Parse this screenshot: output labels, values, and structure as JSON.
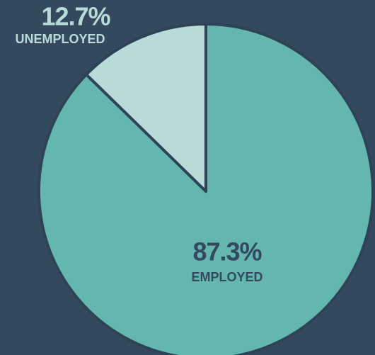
{
  "chart_data": {
    "type": "pie",
    "categories": [
      "EMPLOYED",
      "UNEMPLOYED"
    ],
    "values": [
      87.3,
      12.7
    ],
    "value_labels": [
      "87.3%",
      "12.7%"
    ],
    "colors": [
      "#63b7af",
      "#b8dbd9"
    ]
  }
}
